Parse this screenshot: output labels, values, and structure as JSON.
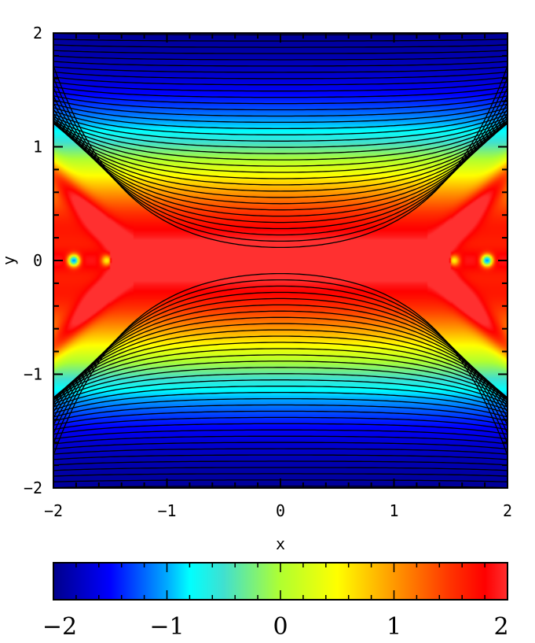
{
  "chart_data": {
    "type": "heatmap",
    "title": "",
    "xlabel": "x",
    "ylabel": "y",
    "xlim": [
      -2,
      2
    ],
    "ylim": [
      -2,
      2
    ],
    "x_ticks": [
      -2,
      -1,
      0,
      1,
      2
    ],
    "y_ticks": [
      -2,
      -1,
      0,
      1,
      2
    ],
    "x_tick_labels": [
      "−2",
      "−1",
      "0",
      "1",
      "2"
    ],
    "y_tick_labels": [
      "−2",
      "−1",
      "0",
      "1",
      "2"
    ],
    "colorbar": {
      "range": [
        -2,
        2
      ],
      "ticks": [
        -2,
        -1,
        0,
        1,
        2
      ],
      "tick_labels": [
        "−2",
        "−1",
        "0",
        "1",
        "2"
      ],
      "colormap": "jet",
      "placement": "bottom"
    },
    "contours": "black",
    "grid": false,
    "features": {
      "ridge_value": 2,
      "vortex_points": [
        [
          -1.82,
          0
        ],
        [
          -1.53,
          0
        ],
        [
          1.53,
          0
        ],
        [
          1.82,
          0
        ]
      ]
    }
  }
}
